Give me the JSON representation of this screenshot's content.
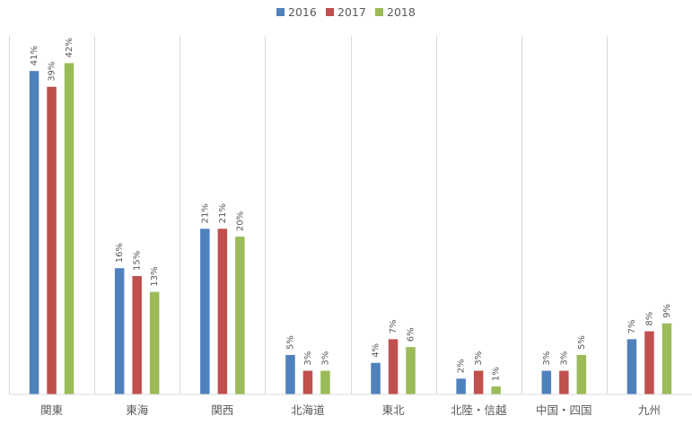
{
  "chart_data": {
    "type": "bar",
    "title": "",
    "xlabel": "",
    "ylabel": "",
    "ylim": [
      0,
      45
    ],
    "grid": "vertical category separators only",
    "legend_placement": "top-center",
    "categories": [
      "関東",
      "東海",
      "関西",
      "北海道",
      "東北",
      "北陸・信越",
      "中国・四国",
      "九州"
    ],
    "series": [
      {
        "name": "2016",
        "color": "#4F81BD",
        "values": [
          41,
          16,
          21,
          5,
          4,
          2,
          3,
          7
        ],
        "labels": [
          "41%",
          "16%",
          "21%",
          "5%",
          "4%",
          "2%",
          "3%",
          "7%"
        ]
      },
      {
        "name": "2017",
        "color": "#C0504D",
        "values": [
          39,
          15,
          21,
          3,
          7,
          3,
          3,
          8
        ],
        "labels": [
          "39%",
          "15%",
          "21%",
          "3%",
          "7%",
          "3%",
          "3%",
          "8%"
        ]
      },
      {
        "name": "2018",
        "color": "#9BBB59",
        "values": [
          42,
          13,
          20,
          3,
          6,
          1,
          5,
          9
        ],
        "labels": [
          "42%",
          "13%",
          "20%",
          "3%",
          "6%",
          "1%",
          "5%",
          "9%"
        ]
      }
    ]
  }
}
